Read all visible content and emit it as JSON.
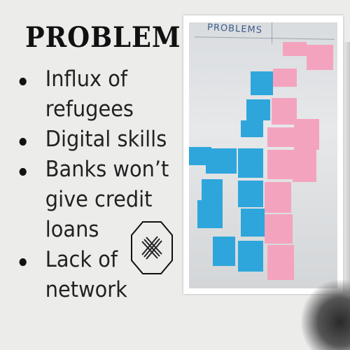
{
  "slide": {
    "title": "PROBLEM",
    "bullets": [
      "Influx of refugees",
      "Digital skills",
      "Banks won’t give credit loans",
      "Lack of network"
    ]
  },
  "photo": {
    "board_heading": "PROBLEMS"
  },
  "colors": {
    "background": "#ececeb",
    "blue_note": "#2ea6dc",
    "pink_note": "#f4a3be",
    "text": "#222222"
  },
  "icons": [
    "cross-out-icon"
  ]
}
